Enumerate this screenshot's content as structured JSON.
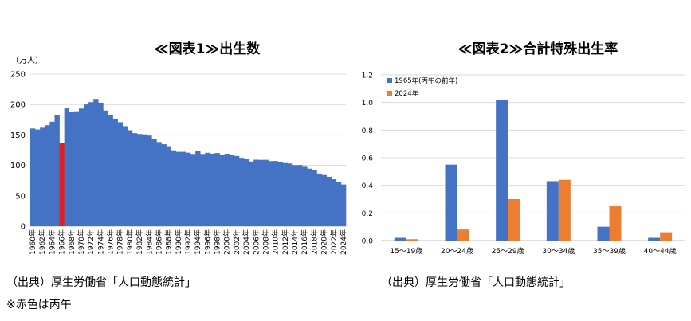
{
  "chart1": {
    "title": "≪図表1≫出生数",
    "unit_label": "（万人）",
    "source": "（出典）厚生労働省「人口動態統計」",
    "note": "※赤色は丙午",
    "highlight_color": "#e02020",
    "bar_color": "#4472c4",
    "chart_data": {
      "type": "bar",
      "title": "≪図表1≫出生数",
      "ylabel": "（万人）",
      "ylim": [
        0,
        250
      ],
      "yticks": [
        0,
        50,
        100,
        150,
        200,
        250
      ],
      "years": [
        1960,
        1961,
        1962,
        1963,
        1964,
        1965,
        1966,
        1967,
        1968,
        1969,
        1970,
        1971,
        1972,
        1973,
        1974,
        1975,
        1976,
        1977,
        1978,
        1979,
        1980,
        1981,
        1982,
        1983,
        1984,
        1985,
        1986,
        1987,
        1988,
        1989,
        1990,
        1991,
        1992,
        1993,
        1994,
        1995,
        1996,
        1997,
        1998,
        1999,
        2000,
        2001,
        2002,
        2003,
        2004,
        2005,
        2006,
        2007,
        2008,
        2009,
        2010,
        2011,
        2012,
        2013,
        2014,
        2015,
        2016,
        2017,
        2018,
        2019,
        2020,
        2021,
        2022,
        2023,
        2024
      ],
      "values": [
        160.6,
        158.9,
        161.9,
        166.0,
        171.7,
        182.4,
        136.1,
        193.6,
        187.2,
        188.9,
        193.4,
        200.1,
        203.9,
        209.2,
        203.0,
        190.1,
        183.3,
        175.5,
        170.9,
        164.3,
        157.7,
        152.9,
        151.5,
        150.9,
        149.0,
        143.2,
        138.3,
        134.7,
        131.4,
        124.7,
        122.2,
        122.3,
        120.9,
        118.8,
        123.8,
        118.7,
        120.7,
        119.2,
        120.3,
        117.8,
        119.1,
        117.1,
        115.4,
        112.4,
        111.1,
        106.3,
        109.3,
        109.0,
        109.1,
        107.0,
        107.1,
        105.1,
        103.7,
        103.0,
        100.4,
        100.6,
        97.7,
        94.6,
        91.8,
        86.5,
        84.1,
        81.2,
        77.1,
        72.7,
        68.6
      ],
      "highlight_year": 1966,
      "xtick_labels": [
        "1960年",
        "1962年",
        "1964年",
        "1966年",
        "1968年",
        "1970年",
        "1972年",
        "1974年",
        "1976年",
        "1978年",
        "1980年",
        "1982年",
        "1984年",
        "1986年",
        "1988年",
        "1990年",
        "1992年",
        "1994年",
        "1996年",
        "1998年",
        "2000年",
        "2002年",
        "2004年",
        "2006年",
        "2008年",
        "2010年",
        "2012年",
        "2014年",
        "2016年",
        "2018年",
        "2020年",
        "2022年",
        "2024年"
      ]
    }
  },
  "chart2": {
    "title": "≪図表2≫合計特殊出生率",
    "source": "（出典）厚生労働省「人口動態統計」",
    "chart_data": {
      "type": "bar",
      "title": "≪図表2≫合計特殊出生率",
      "categories": [
        "15～19歳",
        "20～24歳",
        "25～29歳",
        "30～34歳",
        "35～39歳",
        "40～44歳"
      ],
      "ylim": [
        0,
        1.2
      ],
      "yticks": [
        "0.0",
        "0.2",
        "0.4",
        "0.6",
        "0.8",
        "1.0",
        "1.2"
      ],
      "legend_position": "top-left",
      "series": [
        {
          "name": "1965年(丙午の前年)",
          "color": "#4472c4",
          "values": [
            0.02,
            0.55,
            1.02,
            0.43,
            0.1,
            0.02
          ]
        },
        {
          "name": "2024年",
          "color": "#ed7d31",
          "values": [
            0.01,
            0.08,
            0.3,
            0.44,
            0.25,
            0.06
          ]
        }
      ]
    }
  }
}
